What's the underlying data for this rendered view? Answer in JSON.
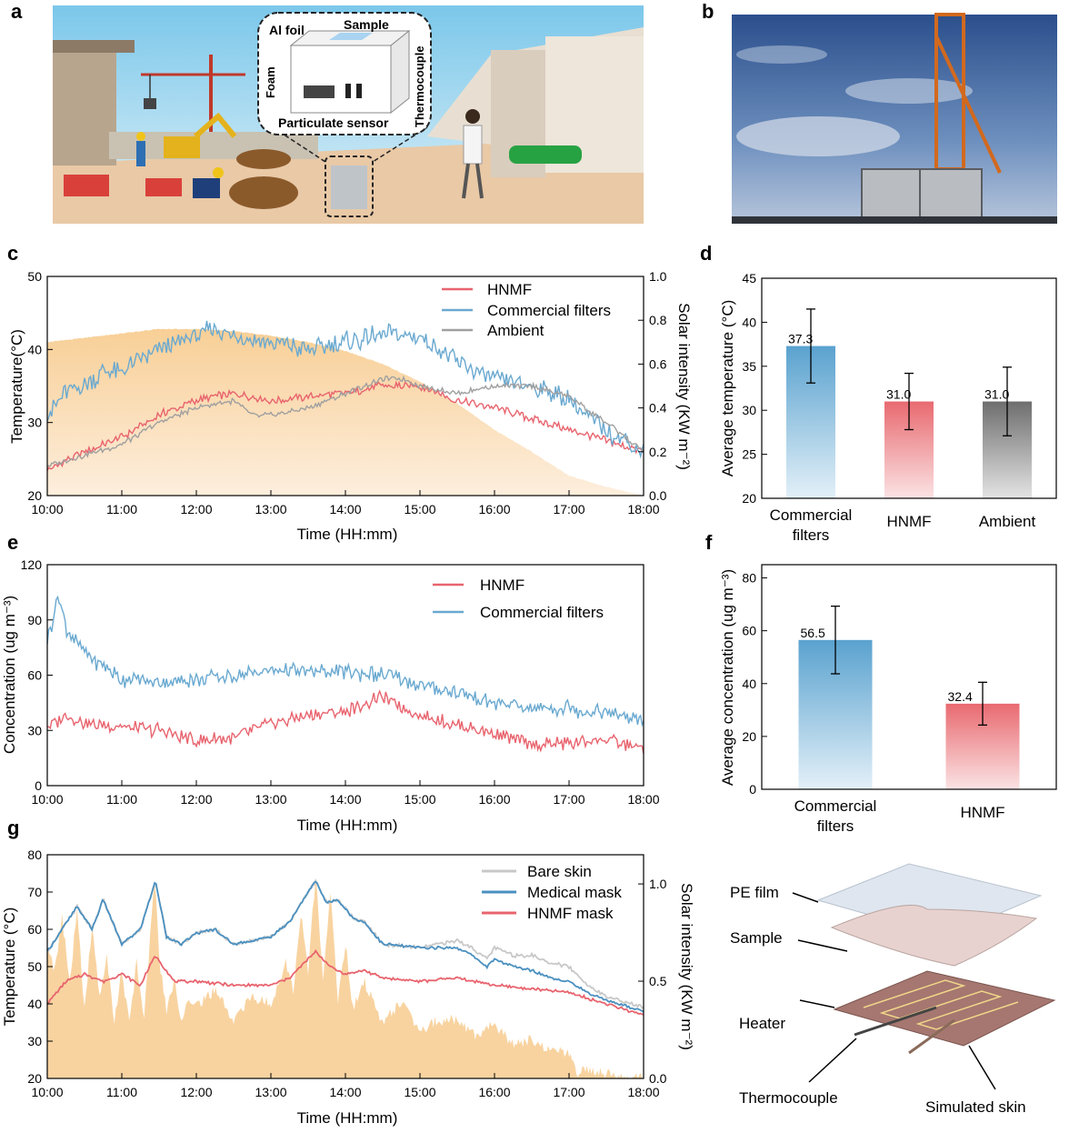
{
  "panels": {
    "a": {
      "label": "a",
      "labels": {
        "al_foil": "Al foil",
        "sample": "Sample",
        "foam": "Foam",
        "particulate_sensor": "Particulate sensor",
        "thermocouple": "Thermocouple"
      }
    },
    "b": {
      "label": "b"
    },
    "c": {
      "label": "c"
    },
    "d": {
      "label": "d"
    },
    "e": {
      "label": "e"
    },
    "f": {
      "label": "f"
    },
    "g": {
      "label": "g"
    }
  },
  "setup_diagram": {
    "labels": {
      "pe_film": "PE film",
      "sample": "Sample",
      "heater": "Heater",
      "thermocouple": "Thermocouple",
      "simulated_skin": "Simulated skin"
    }
  },
  "colors": {
    "hnmf": "#e8646e",
    "commercial": "#6aa9d0",
    "ambient": "#a0a0a0",
    "solar": "#f8d3a0",
    "bare": "#c8c8c8",
    "medical": "#4a90c0"
  },
  "chart_data": [
    {
      "id": "c",
      "type": "line",
      "xlabel": "Time (HH:mm)",
      "ylabel": "Temperature(°C)",
      "y2label": "Solar intensity (KW m⁻²)",
      "xticks": [
        "10:00",
        "11:00",
        "12:00",
        "13:00",
        "14:00",
        "15:00",
        "16:00",
        "17:00",
        "18:00"
      ],
      "xlim": [
        10,
        18
      ],
      "ylim": [
        20,
        50
      ],
      "yticks": [
        20,
        30,
        40,
        50
      ],
      "y2lim": [
        0,
        1.0
      ],
      "y2ticks": [
        "0.0",
        "0.2",
        "0.4",
        "0.6",
        "0.8",
        "1.0"
      ],
      "legend": [
        "HNMF",
        "Commercial filters",
        "Ambient"
      ],
      "series": [
        {
          "name": "HNMF",
          "x": [
            10,
            10.5,
            11,
            11.5,
            12,
            12.5,
            13,
            13.5,
            14,
            14.5,
            15,
            15.5,
            16,
            16.5,
            17,
            17.5,
            18
          ],
          "values": [
            23.5,
            26,
            28,
            31,
            33,
            34,
            33,
            33.5,
            34,
            35,
            35,
            33,
            32,
            30.5,
            29,
            27.5,
            26
          ]
        },
        {
          "name": "Commercial filters",
          "x": [
            10,
            10.25,
            10.5,
            10.75,
            11,
            11.5,
            12,
            12.25,
            12.5,
            13,
            13.5,
            14,
            14.5,
            15,
            15.25,
            15.5,
            16,
            16.5,
            17,
            17.5,
            18
          ],
          "values": [
            31,
            34,
            35,
            37,
            37,
            40,
            42,
            43,
            42,
            41,
            40,
            41,
            42,
            41.5,
            40,
            38,
            36,
            35,
            33,
            29,
            26
          ]
        },
        {
          "name": "Ambient",
          "x": [
            10,
            10.5,
            11,
            11.5,
            12,
            12.5,
            12.75,
            13,
            13.5,
            14,
            14.5,
            14.75,
            15,
            15.5,
            16,
            16.5,
            17,
            17.5,
            18
          ],
          "values": [
            24,
            25.5,
            27,
            30,
            32,
            33,
            31,
            31,
            32,
            34,
            36,
            36,
            35,
            34,
            35,
            35,
            33.5,
            30,
            26
          ]
        },
        {
          "name": "Solar intensity",
          "axis": "y2",
          "x": [
            10,
            10.5,
            11,
            11.5,
            12,
            12.5,
            13,
            13.5,
            14,
            14.5,
            15,
            15.5,
            16,
            16.5,
            17,
            17.5,
            18
          ],
          "values": [
            0.7,
            0.72,
            0.74,
            0.76,
            0.76,
            0.75,
            0.73,
            0.7,
            0.66,
            0.6,
            0.52,
            0.42,
            0.3,
            0.2,
            0.09,
            0.04,
            0.0
          ]
        }
      ]
    },
    {
      "id": "d",
      "type": "bar",
      "ylabel": "Average temperature (°C)",
      "ylim": [
        20,
        45
      ],
      "yticks": [
        20,
        25,
        30,
        35,
        40,
        45
      ],
      "categories": [
        "Commercial filters",
        "HNMF",
        "Ambient"
      ],
      "category_lines": [
        [
          "Commercial",
          "filters"
        ],
        [
          "HNMF"
        ],
        [
          "Ambient"
        ]
      ],
      "values": [
        37.3,
        31.0,
        31.0
      ],
      "value_labels": [
        "37.3",
        "31.0",
        "31.0"
      ],
      "errors": [
        4.2,
        3.2,
        3.9
      ]
    },
    {
      "id": "e",
      "type": "line",
      "xlabel": "Time (HH:mm)",
      "ylabel": "Concentration (ug m⁻³)",
      "xticks": [
        "10:00",
        "11:00",
        "12:00",
        "13:00",
        "14:00",
        "15:00",
        "16:00",
        "17:00",
        "18:00"
      ],
      "xlim": [
        10,
        18
      ],
      "ylim": [
        0,
        120
      ],
      "yticks": [
        0,
        30,
        60,
        90,
        120
      ],
      "legend": [
        "HNMF",
        "Commercial filters"
      ],
      "series": [
        {
          "name": "HNMF",
          "x": [
            10,
            10.25,
            10.5,
            11,
            11.5,
            12,
            12.5,
            13,
            13.5,
            14,
            14.5,
            15,
            15.5,
            16,
            16.5,
            17,
            17.5,
            18
          ],
          "values": [
            32,
            38,
            34,
            32,
            30,
            24,
            26,
            34,
            38,
            40,
            48,
            38,
            33,
            28,
            22,
            23,
            25,
            20
          ]
        },
        {
          "name": "Commercial filters",
          "x": [
            10,
            10.15,
            10.25,
            10.5,
            11,
            11.5,
            12,
            12.5,
            13,
            13.5,
            14,
            14.5,
            15,
            15.5,
            16,
            16.5,
            17,
            17.5,
            18
          ],
          "values": [
            78,
            104,
            85,
            72,
            58,
            56,
            58,
            60,
            63,
            62,
            62,
            60,
            54,
            50,
            45,
            42,
            42,
            40,
            35
          ]
        }
      ]
    },
    {
      "id": "f",
      "type": "bar",
      "ylabel": "Average concentration (ug m⁻³)",
      "ylim": [
        0,
        85
      ],
      "yticks": [
        0,
        20,
        40,
        60,
        80
      ],
      "categories": [
        "Commercial filters",
        "HNMF"
      ],
      "category_lines": [
        [
          "Commercial",
          "filters"
        ],
        [
          "HNMF"
        ]
      ],
      "values": [
        56.5,
        32.4
      ],
      "value_labels": [
        "56.5",
        "32.4"
      ],
      "errors": [
        12.8,
        8.1
      ]
    },
    {
      "id": "g",
      "type": "line",
      "xlabel": "Time (HH:mm)",
      "ylabel": "Temperature (°C)",
      "y2label": "Solar intensity (KW m⁻²)",
      "xticks": [
        "10:00",
        "11:00",
        "12:00",
        "13:00",
        "14:00",
        "15:00",
        "16:00",
        "17:00",
        "18:00"
      ],
      "xlim": [
        10,
        18
      ],
      "ylim": [
        20,
        80
      ],
      "yticks": [
        20,
        30,
        40,
        50,
        60,
        70,
        80
      ],
      "y2lim": [
        0,
        1.15
      ],
      "y2ticks": [
        "0.0",
        "0.5",
        "1.0"
      ],
      "legend": [
        "Bare skin",
        "Medical mask",
        "HNMF mask"
      ],
      "series": [
        {
          "name": "Bare skin",
          "x": [
            10,
            10.2,
            10.4,
            10.6,
            10.75,
            11,
            11.25,
            11.45,
            11.6,
            11.8,
            12,
            12.25,
            12.5,
            12.75,
            13,
            13.25,
            13.5,
            13.6,
            13.75,
            13.9,
            14.1,
            14.25,
            14.5,
            15,
            15.25,
            15.5,
            15.7,
            15.9,
            16,
            16.25,
            16.5,
            16.75,
            17,
            17.25,
            17.5,
            18
          ],
          "values": [
            54,
            60,
            66,
            60,
            68,
            56,
            60,
            73,
            58,
            56,
            59,
            60,
            56,
            57,
            58,
            62,
            70,
            73,
            67,
            68,
            63,
            62,
            56,
            55,
            56,
            57,
            55,
            52,
            55,
            53,
            53,
            51,
            50,
            45,
            42,
            39
          ]
        },
        {
          "name": "Medical mask",
          "x": [
            10,
            10.2,
            10.4,
            10.6,
            10.75,
            11,
            11.25,
            11.45,
            11.6,
            11.8,
            12,
            12.25,
            12.5,
            12.75,
            13,
            13.25,
            13.5,
            13.6,
            13.75,
            13.9,
            14.1,
            14.25,
            14.5,
            15,
            15.25,
            15.5,
            15.7,
            15.9,
            16,
            16.25,
            16.5,
            16.75,
            17,
            17.25,
            17.5,
            18
          ],
          "values": [
            54,
            60,
            66,
            60,
            68,
            56,
            60,
            73,
            58,
            56,
            59,
            60,
            56,
            57,
            58,
            62,
            70,
            73,
            67,
            68,
            63,
            62,
            56,
            55,
            55,
            55,
            53,
            50,
            52,
            50,
            49,
            47,
            46,
            43,
            41,
            38
          ]
        },
        {
          "name": "HNMF mask",
          "x": [
            10,
            10.25,
            10.5,
            10.75,
            11,
            11.25,
            11.45,
            11.7,
            12,
            12.5,
            13,
            13.25,
            13.5,
            13.6,
            13.8,
            14,
            14.25,
            14.5,
            15,
            15.5,
            16,
            16.5,
            17,
            17.5,
            18
          ],
          "values": [
            40,
            46,
            48,
            46,
            48,
            45,
            53,
            46,
            46,
            45,
            45,
            47,
            52,
            54,
            50,
            48,
            49,
            47,
            46,
            47,
            45,
            44,
            43,
            40,
            37
          ]
        },
        {
          "name": "Solar intensity",
          "axis": "y2",
          "x": [
            10,
            10.1,
            10.2,
            10.3,
            10.4,
            10.5,
            10.6,
            10.7,
            10.8,
            10.9,
            11,
            11.1,
            11.2,
            11.3,
            11.4,
            11.45,
            11.5,
            11.6,
            11.7,
            11.8,
            11.9,
            12,
            12.25,
            12.5,
            12.75,
            13,
            13.2,
            13.3,
            13.4,
            13.5,
            13.6,
            13.7,
            13.8,
            13.9,
            14,
            14.1,
            14.25,
            14.5,
            14.75,
            15,
            15.25,
            15.5,
            15.75,
            16,
            16.25,
            16.5,
            16.75,
            17,
            17.1,
            17.25,
            17.5,
            17.75,
            18
          ],
          "values": [
            0.7,
            0.55,
            0.82,
            0.5,
            0.86,
            0.35,
            0.78,
            0.42,
            0.62,
            0.3,
            0.55,
            0.28,
            0.6,
            0.3,
            0.85,
            1.0,
            0.62,
            0.35,
            0.5,
            0.3,
            0.42,
            0.38,
            0.45,
            0.3,
            0.42,
            0.38,
            0.6,
            0.45,
            0.85,
            0.55,
            1.05,
            0.5,
            0.95,
            0.4,
            0.7,
            0.35,
            0.5,
            0.28,
            0.4,
            0.25,
            0.3,
            0.3,
            0.22,
            0.28,
            0.18,
            0.2,
            0.15,
            0.12,
            0.02,
            0.05,
            0.03,
            0.0,
            0.0
          ]
        }
      ]
    }
  ]
}
